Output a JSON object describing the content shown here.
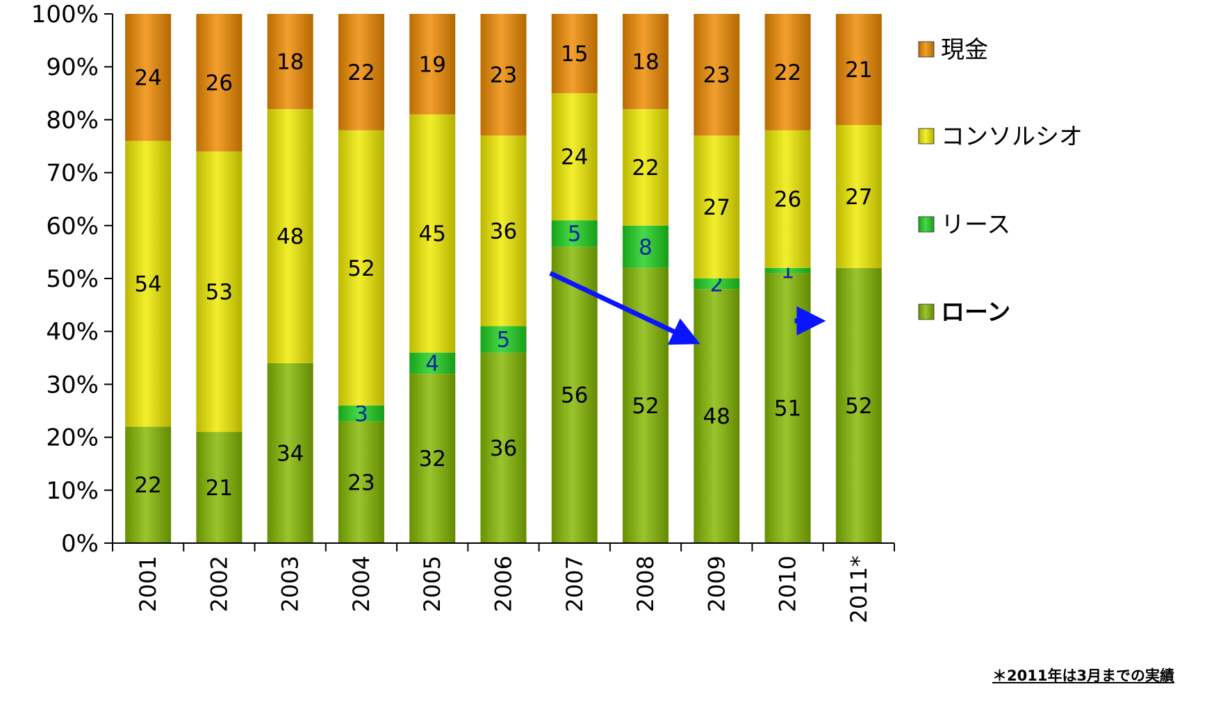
{
  "chart_data": {
    "type": "bar",
    "stacked": true,
    "categories": [
      "2001",
      "2002",
      "2003",
      "2004",
      "2005",
      "2006",
      "2007",
      "2008",
      "2009",
      "2010",
      "2011*"
    ],
    "y_ticks": [
      "0%",
      "10%",
      "20%",
      "30%",
      "40%",
      "50%",
      "60%",
      "70%",
      "80%",
      "90%",
      "100%"
    ],
    "ylim": [
      0,
      100
    ],
    "grid": false,
    "legend_position": "right",
    "series": [
      {
        "name": "ローン",
        "color": "#84b800",
        "values": [
          22,
          21,
          34,
          23,
          32,
          36,
          56,
          52,
          48,
          51,
          52
        ],
        "labels": [
          "22",
          "21",
          "34",
          "23",
          "32",
          "36",
          "56",
          "52",
          "48",
          "51",
          "52"
        ]
      },
      {
        "name": "リース",
        "color": "#1fd11f",
        "values": [
          0,
          0,
          0,
          3,
          4,
          5,
          5,
          8,
          2,
          1,
          0
        ],
        "labels": [
          "",
          "",
          "",
          "3",
          "4",
          "5",
          "5",
          "8",
          "2",
          "1",
          ""
        ]
      },
      {
        "name": "コンソルシオ",
        "color": "#f0ec00",
        "values": [
          54,
          53,
          48,
          52,
          45,
          36,
          24,
          22,
          27,
          26,
          27
        ],
        "labels": [
          "54",
          "53",
          "48",
          "52",
          "45",
          "36",
          "24",
          "22",
          "27",
          "26",
          "27"
        ]
      },
      {
        "name": "現金",
        "color": "#ef8a00",
        "values": [
          24,
          26,
          18,
          22,
          19,
          23,
          15,
          18,
          23,
          22,
          21
        ],
        "labels": [
          "24",
          "26",
          "18",
          "22",
          "19",
          "23",
          "15",
          "18",
          "23",
          "22",
          "21"
        ]
      }
    ],
    "legend_order": [
      "現金",
      "コンソルシオ",
      "リース",
      "ローン"
    ],
    "annotations": [
      {
        "type": "arrow",
        "color": "#0a14ff",
        "from": [
          "2007",
          51
        ],
        "to": [
          "2009",
          42
        ]
      },
      {
        "type": "arrow",
        "color": "#0a14ff",
        "from": [
          "2010",
          42
        ],
        "to": [
          "2011*",
          42
        ]
      }
    ],
    "footnote": "＊2011年は3月までの実績"
  }
}
